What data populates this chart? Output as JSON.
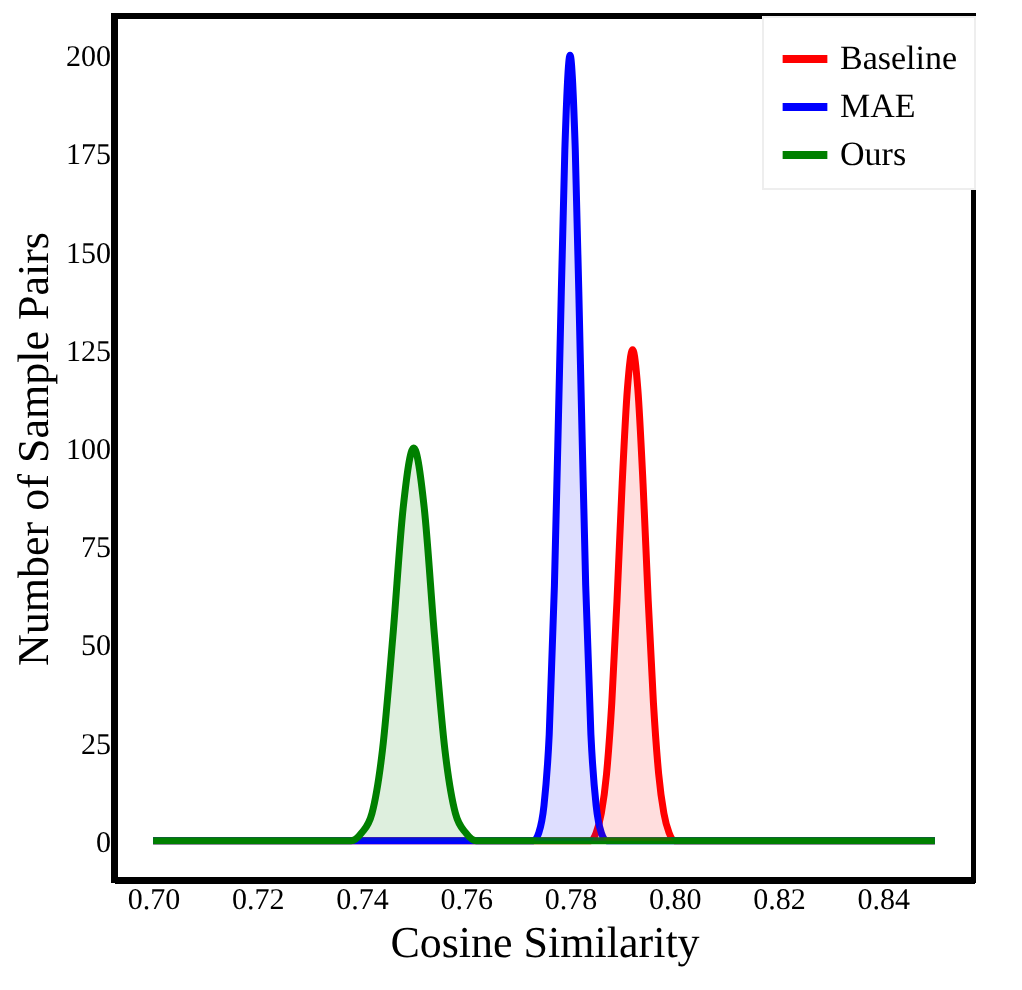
{
  "chart_data": {
    "type": "area",
    "xlabel": "Cosine Similarity",
    "ylabel": "Number of Sample Pairs",
    "xlim": [
      0.6925,
      0.8575
    ],
    "xticks": [
      {
        "value": 0.7,
        "label": "0.70"
      },
      {
        "value": 0.72,
        "label": "0.72"
      },
      {
        "value": 0.74,
        "label": "0.74"
      },
      {
        "value": 0.76,
        "label": "0.76"
      },
      {
        "value": 0.78,
        "label": "0.78"
      },
      {
        "value": 0.8,
        "label": "0.80"
      },
      {
        "value": 0.82,
        "label": "0.82"
      },
      {
        "value": 0.84,
        "label": "0.84"
      }
    ],
    "ylim": [
      -10,
      210
    ],
    "yticks": [
      0,
      25,
      50,
      75,
      100,
      125,
      150,
      175,
      200
    ],
    "grid": false,
    "legend": "top right",
    "series": [
      {
        "name": "Baseline",
        "color": "#ff0000",
        "x": [
          0.7,
          0.784,
          0.785,
          0.786,
          0.787,
          0.788,
          0.789,
          0.79,
          0.791,
          0.792,
          0.793,
          0.794,
          0.795,
          0.796,
          0.797,
          0.798,
          0.799,
          0.8,
          0.85
        ],
        "values": [
          0,
          0,
          2,
          7,
          17,
          35,
          61,
          91,
          115,
          125,
          115,
          91,
          61,
          35,
          17,
          7,
          2,
          0,
          0
        ]
      },
      {
        "name": "MAE",
        "color": "#0000ff",
        "x": [
          0.7,
          0.773,
          0.774,
          0.775,
          0.776,
          0.777,
          0.778,
          0.779,
          0.78,
          0.781,
          0.782,
          0.783,
          0.784,
          0.785,
          0.786,
          0.787,
          0.85
        ],
        "values": [
          0,
          0,
          2,
          9,
          27,
          65,
          121,
          176,
          200,
          176,
          121,
          65,
          27,
          9,
          2,
          0,
          0
        ]
      },
      {
        "name": "Ours",
        "color": "#008000",
        "x": [
          0.7,
          0.738,
          0.74,
          0.742,
          0.744,
          0.746,
          0.748,
          0.75,
          0.752,
          0.754,
          0.756,
          0.758,
          0.76,
          0.762,
          0.85
        ],
        "values": [
          0,
          0,
          2,
          7,
          23,
          52,
          85,
          100,
          85,
          52,
          23,
          7,
          2,
          0,
          0
        ]
      }
    ]
  }
}
